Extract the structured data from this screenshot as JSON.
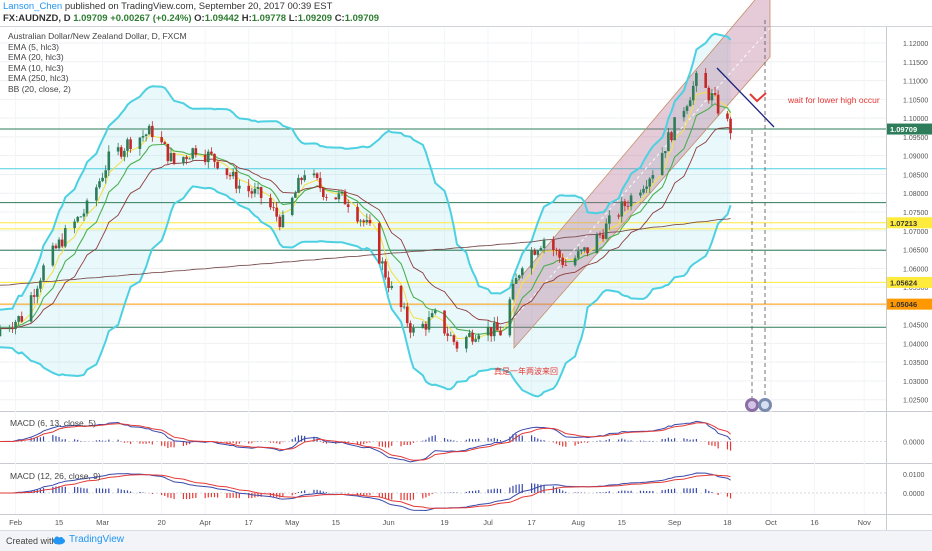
{
  "header": {
    "user": "Lanson_Chen",
    "published": "published on TradingView.com, September 20, 2017 00:39 EST",
    "symbol_line": "FX:AUDNZD, D",
    "last": "1.09709",
    "change": "+0.00267 (+0.24%)",
    "open_label": "O:",
    "open": "1.09442",
    "high_label": "H:",
    "high": "1.09778",
    "low_label": "L:",
    "low": "1.09209",
    "close_label": "C:",
    "close": "1.09709"
  },
  "legend": {
    "title": "Australian Dollar/New Zealand Dollar, D, FXCM",
    "items": [
      "EMA (5, hlc3)",
      "EMA (20, hlc3)",
      "EMA (10, hlc3)",
      "EMA (250, hlc3)",
      "BB (20, close, 2)"
    ]
  },
  "annotations": {
    "wait_text": "wait for lower high occur",
    "chinese_text": "真是一年两波来回"
  },
  "macd_panes": [
    {
      "label": "MACD (6, 13, close, 5)",
      "ticks": [
        "0.0000"
      ]
    },
    {
      "label": "MACD (12, 26, close, 9)",
      "ticks": [
        "0.0100",
        "0.0000"
      ]
    }
  ],
  "footer": {
    "created_with": "Created with",
    "brand": "TradingView"
  },
  "colors": {
    "bb": "#4dd0e1",
    "ema5": "#f4e04d",
    "ema10": "#4caf50",
    "ema20": "#8d3b3b",
    "ema250": "#7a4d4d",
    "up": "#2e7d5a",
    "down": "#c62828",
    "channel": "#b46a8c",
    "level_yellow": "#ffeb3b",
    "level_orange": "#ff9800",
    "trend_blue": "#1a237e",
    "annotation_red": "#e53935",
    "macd_line": "#3949ab",
    "signal_line": "#e53935"
  },
  "chart_data": {
    "type": "candlestick",
    "symbol": "FX:AUDNZD",
    "timeframe": "D",
    "ylim": [
      1.02,
      1.125
    ],
    "y_ticks": [
      "1.12000",
      "1.11500",
      "1.11000",
      "1.10500",
      "1.10000",
      "1.09500",
      "1.09000",
      "1.08500",
      "1.08000",
      "1.07500",
      "1.07000",
      "1.06500",
      "1.06000",
      "1.05500",
      "1.05000",
      "1.04500",
      "1.04000",
      "1.03500",
      "1.03000",
      "1.02500"
    ],
    "x_ticks": [
      "Feb",
      "15",
      "Mar",
      "20",
      "Apr",
      "17",
      "May",
      "15",
      "Jun",
      "19",
      "Jul",
      "17",
      "Aug",
      "15",
      "Sep",
      "18",
      "Oct",
      "16",
      "Nov"
    ],
    "price_labels": [
      {
        "value": 1.09709,
        "text": "1.09709",
        "color": "#2e7d5a"
      },
      {
        "value": 1.07213,
        "text": "1.07213",
        "color": "#ffeb3b"
      },
      {
        "value": 1.05624,
        "text": "1.05624",
        "color": "#ffeb3b"
      },
      {
        "value": 1.05046,
        "text": "1.05046",
        "color": "#ff9800"
      }
    ],
    "horizontal_levels": [
      {
        "value": 1.09709,
        "color": "#2e7d5a"
      },
      {
        "value": 1.0865,
        "color": "#4dd0e1"
      },
      {
        "value": 1.0775,
        "color": "#2e7d5a"
      },
      {
        "value": 1.07213,
        "color": "#ffeb3b"
      },
      {
        "value": 1.0705,
        "color": "#ffeb3b"
      },
      {
        "value": 1.0648,
        "color": "#2e7d5a"
      },
      {
        "value": 1.05624,
        "color": "#ffeb3b"
      },
      {
        "value": 1.05046,
        "color": "#ff9800"
      },
      {
        "value": 1.0443,
        "color": "#2e7d5a"
      }
    ],
    "close_anchors": [
      [
        "2017-01-27",
        1.044
      ],
      [
        "2017-02-03",
        1.047
      ],
      [
        "2017-02-10",
        1.06
      ],
      [
        "2017-02-17",
        1.069
      ],
      [
        "2017-02-24",
        1.076
      ],
      [
        "2017-03-03",
        1.089
      ],
      [
        "2017-03-10",
        1.094
      ],
      [
        "2017-03-17",
        1.0965
      ],
      [
        "2017-03-24",
        1.088
      ],
      [
        "2017-03-31",
        1.092
      ],
      [
        "2017-04-07",
        1.0885
      ],
      [
        "2017-04-14",
        1.082
      ],
      [
        "2017-04-21",
        1.079
      ],
      [
        "2017-04-28",
        1.072
      ],
      [
        "2017-05-05",
        1.086
      ],
      [
        "2017-05-12",
        1.08
      ],
      [
        "2017-05-19",
        1.078
      ],
      [
        "2017-05-26",
        1.07
      ],
      [
        "2017-06-02",
        1.054
      ],
      [
        "2017-06-09",
        1.043
      ],
      [
        "2017-06-16",
        1.047
      ],
      [
        "2017-06-23",
        1.0395
      ],
      [
        "2017-06-30",
        1.044
      ],
      [
        "2017-07-07",
        1.043
      ],
      [
        "2017-07-14",
        1.062
      ],
      [
        "2017-07-21",
        1.068
      ],
      [
        "2017-07-28",
        1.061
      ],
      [
        "2017-08-04",
        1.065
      ],
      [
        "2017-08-11",
        1.072
      ],
      [
        "2017-08-18",
        1.079
      ],
      [
        "2017-08-25",
        1.086
      ],
      [
        "2017-09-01",
        1.098
      ],
      [
        "2017-09-08",
        1.11
      ],
      [
        "2017-09-13",
        1.1055
      ],
      [
        "2017-09-19",
        1.09709
      ]
    ]
  }
}
